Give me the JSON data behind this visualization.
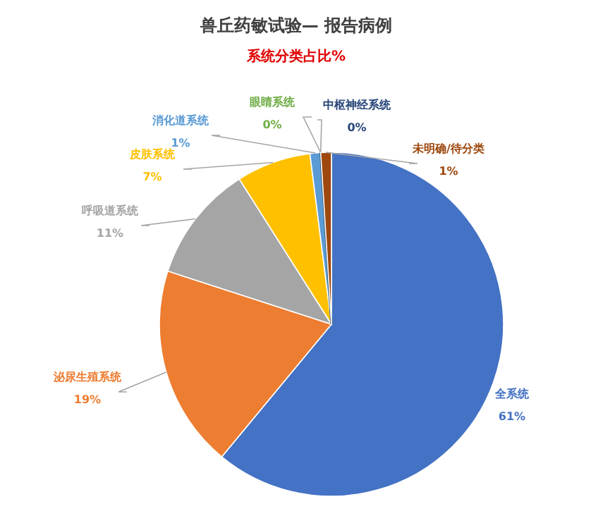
{
  "chart_data": {
    "type": "pie",
    "title": "兽丘药敏试验— 报告病例",
    "subtitle": "系统分类占比%",
    "categories": [
      "全系统",
      "泌尿生殖系统",
      "呼吸道系统",
      "皮肤系统",
      "消化道系统",
      "眼睛系统",
      "中枢神经系统",
      "未明确/待分类"
    ],
    "values": [
      61,
      19,
      11,
      7,
      1,
      0,
      0,
      1
    ],
    "colors": [
      "#4472c4",
      "#ed7d31",
      "#a5a5a5",
      "#ffc000",
      "#5b9bd5",
      "#70ad47",
      "#264478",
      "#9e480e"
    ],
    "value_labels": [
      "61%",
      "19%",
      "11%",
      "7%",
      "1%",
      "0%",
      "0%",
      "1%"
    ]
  }
}
